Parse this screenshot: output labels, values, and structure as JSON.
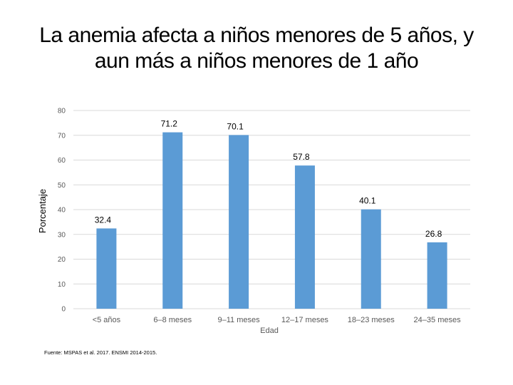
{
  "title": {
    "line1": "La anemia afecta a niños menores de 5 años, y",
    "line2": "aun más a niños menores de 1 año"
  },
  "source": "Fuente: MSPAS et al. 2017. ENSMI 2014-2015.",
  "chart_data": {
    "type": "bar",
    "title": "La anemia afecta a niños menores de 5 años, y aun más a niños menores de 1 año",
    "xlabel": "Edad",
    "ylabel": "Porcentaje",
    "categories": [
      "<5 años",
      "6–8 meses",
      "9–11 meses",
      "12–17 meses",
      "18–23 meses",
      "24–35 meses"
    ],
    "values": [
      32.4,
      71.2,
      70.1,
      57.8,
      40.1,
      26.8
    ],
    "data_labels": [
      "32.4",
      "71.2",
      "70.1",
      "57.8",
      "40.1",
      "26.8"
    ],
    "ylim": [
      0,
      80
    ],
    "yticks": [
      0,
      10,
      20,
      30,
      40,
      50,
      60,
      70,
      80
    ],
    "grid": true,
    "legend": "none",
    "bar_color": "#5B9BD5",
    "grid_color": "#D9D9D9"
  }
}
